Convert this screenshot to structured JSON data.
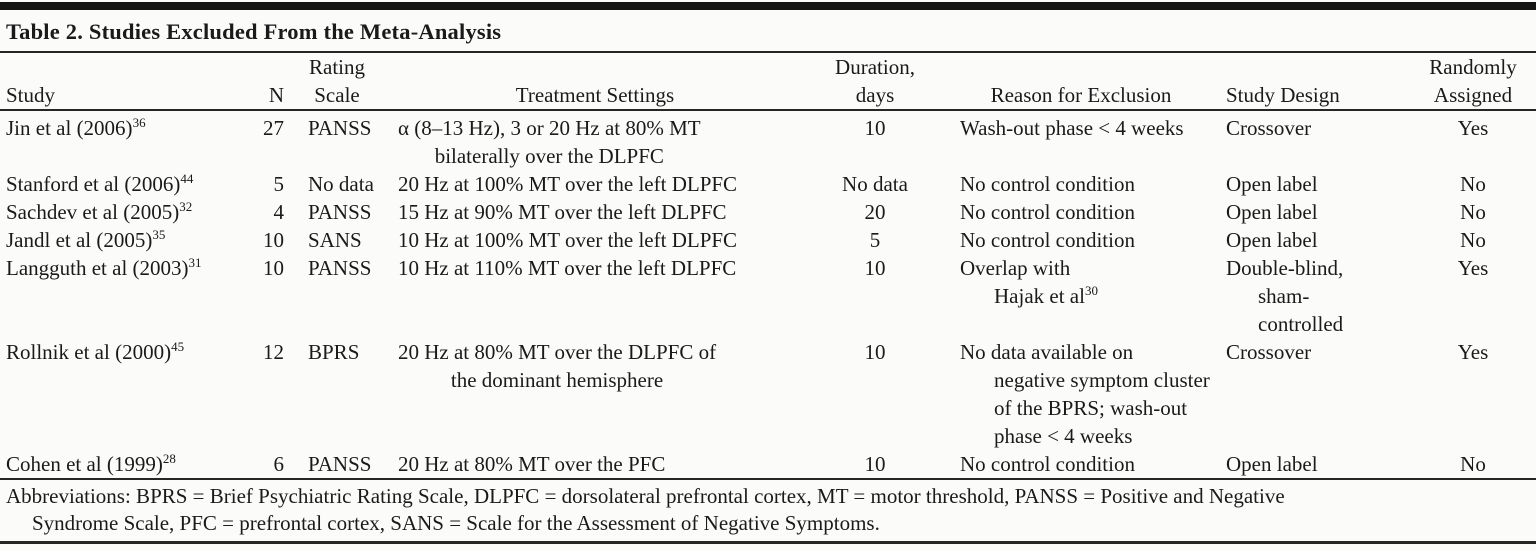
{
  "page": {
    "background": "#fbfbfa",
    "text_color": "#1a1a1a",
    "rule_color": "#262626"
  },
  "table": {
    "title": "Table 2. Studies Excluded From the Meta-Analysis",
    "columns": [
      {
        "id": "study",
        "label_lines": [
          "Study"
        ]
      },
      {
        "id": "n",
        "label_lines": [
          "N"
        ]
      },
      {
        "id": "scale",
        "label_lines": [
          "Rating",
          "Scale"
        ]
      },
      {
        "id": "treatment",
        "label_lines": [
          "Treatment Settings"
        ]
      },
      {
        "id": "duration",
        "label_lines": [
          "Duration,",
          "days"
        ]
      },
      {
        "id": "reason",
        "label_lines": [
          "Reason for Exclusion"
        ]
      },
      {
        "id": "design",
        "label_lines": [
          "Study Design"
        ]
      },
      {
        "id": "assigned",
        "label_lines": [
          "Randomly",
          "Assigned"
        ]
      }
    ],
    "rows": [
      {
        "study": {
          "t": "Jin et al (2006)",
          "sup": "36"
        },
        "n": "27",
        "scale": "PANSS",
        "treatment": [
          "α (8–13 Hz), 3 or 20 Hz at 80% MT",
          "bilaterally over the DLPFC"
        ],
        "duration": "10",
        "reason": [
          {
            "t": "Wash-out phase < 4 weeks"
          }
        ],
        "design": [
          "Crossover"
        ],
        "assigned": "Yes"
      },
      {
        "study": {
          "t": "Stanford et al (2006)",
          "sup": "44"
        },
        "n": "5",
        "scale": "No data",
        "treatment": [
          "20 Hz at 100% MT over the left DLPFC"
        ],
        "duration": "No data",
        "reason": [
          {
            "t": "No control condition"
          }
        ],
        "design": [
          "Open label"
        ],
        "assigned": "No"
      },
      {
        "study": {
          "t": "Sachdev et al (2005)",
          "sup": "32"
        },
        "n": "4",
        "scale": "PANSS",
        "treatment": [
          "15 Hz at 90% MT over the left DLPFC"
        ],
        "duration": "20",
        "reason": [
          {
            "t": "No control condition"
          }
        ],
        "design": [
          "Open label"
        ],
        "assigned": "No"
      },
      {
        "study": {
          "t": "Jandl et al (2005)",
          "sup": "35"
        },
        "n": "10",
        "scale": "SANS",
        "treatment": [
          "10 Hz at 100% MT over the left DLPFC"
        ],
        "duration": "5",
        "reason": [
          {
            "t": "No control condition"
          }
        ],
        "design": [
          "Open label"
        ],
        "assigned": "No"
      },
      {
        "study": {
          "t": "Langguth et al (2003)",
          "sup": "31"
        },
        "n": "10",
        "scale": "PANSS",
        "treatment": [
          "10 Hz at 110% MT over the left DLPFC"
        ],
        "duration": "10",
        "reason": [
          {
            "t": "Overlap with"
          },
          {
            "t": "Hajak et al",
            "sup": "30"
          }
        ],
        "design": [
          "Double-blind,",
          "sham-",
          "controlled"
        ],
        "assigned": "Yes"
      },
      {
        "study": {
          "t": "Rollnik et al (2000)",
          "sup": "45"
        },
        "n": "12",
        "scale": "BPRS",
        "treatment": [
          "20 Hz at 80% MT over the DLPFC of",
          "the dominant hemisphere"
        ],
        "duration": "10",
        "reason": [
          {
            "t": "No data available on"
          },
          {
            "t": "negative symptom cluster"
          },
          {
            "t": "of the BPRS; wash-out"
          },
          {
            "t": "phase < 4 weeks"
          }
        ],
        "design": [
          "Crossover"
        ],
        "assigned": "Yes"
      },
      {
        "study": {
          "t": "Cohen et al (1999)",
          "sup": "28"
        },
        "n": "6",
        "scale": "PANSS",
        "treatment": [
          "20 Hz at 80% MT over the PFC"
        ],
        "duration": "10",
        "reason": [
          {
            "t": "No control condition"
          }
        ],
        "design": [
          "Open label"
        ],
        "assigned": "No"
      }
    ],
    "footnote_lines": [
      "Abbreviations: BPRS = Brief Psychiatric Rating Scale, DLPFC = dorsolateral prefrontal cortex, MT = motor threshold, PANSS = Positive and Negative",
      "Syndrome Scale, PFC = prefrontal cortex, SANS = Scale for the Assessment of Negative Symptoms."
    ]
  }
}
